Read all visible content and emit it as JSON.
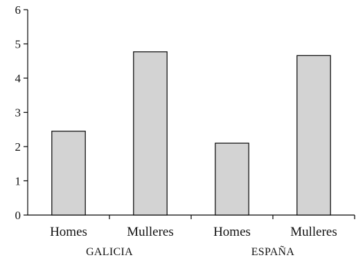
{
  "chart_data": {
    "type": "bar",
    "title": "",
    "xlabel": "",
    "ylabel": "",
    "ylim": [
      0,
      6
    ],
    "yticks": [
      0,
      1,
      2,
      3,
      4,
      5,
      6
    ],
    "grid": false,
    "legend": "none",
    "bar_color": "#d3d3d3",
    "edge_color": "#000000",
    "groups": [
      {
        "label": "GALICIA",
        "categories": [
          "Homes",
          "Mulleres"
        ],
        "values": [
          2.45,
          4.77
        ]
      },
      {
        "label": "ESPAÑA",
        "categories": [
          "Homes",
          "Mulleres"
        ],
        "values": [
          2.1,
          4.66
        ]
      }
    ]
  }
}
